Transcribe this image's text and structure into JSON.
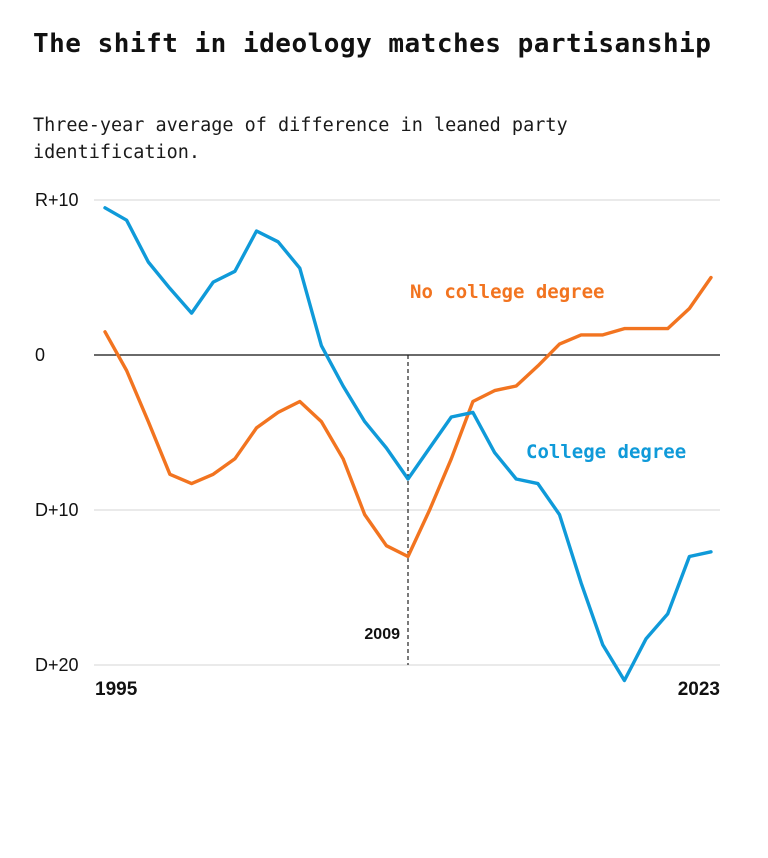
{
  "chart_data": {
    "type": "line",
    "title": "The shift in ideology matches partisanship",
    "subtitle": "Three-year average of difference in leaned party identification.",
    "xlabel": "",
    "ylabel": "",
    "x": [
      1995,
      1996,
      1997,
      1998,
      1999,
      2000,
      2001,
      2002,
      2003,
      2004,
      2005,
      2006,
      2007,
      2008,
      2009,
      2010,
      2011,
      2012,
      2013,
      2014,
      2015,
      2016,
      2017,
      2018,
      2019,
      2020,
      2021,
      2022,
      2023
    ],
    "x_tick_labels": [
      "1995",
      "2023"
    ],
    "ylim": [
      -20,
      10
    ],
    "y_ticks": [
      {
        "value": 10,
        "label": "R+10"
      },
      {
        "value": 0,
        "label": "0"
      },
      {
        "value": -10,
        "label": "D+10"
      },
      {
        "value": -20,
        "label": "D+20"
      }
    ],
    "grid": true,
    "series": [
      {
        "name": "College degree",
        "color": "#0f9ad9",
        "values": [
          9.5,
          8.7,
          6.0,
          4.3,
          2.7,
          4.7,
          5.4,
          8.0,
          7.3,
          5.6,
          0.6,
          -2.0,
          -4.3,
          -6.0,
          -8.0,
          -6.0,
          -4.0,
          -3.7,
          -6.3,
          -8.0,
          -8.3,
          -10.3,
          -14.7,
          -18.7,
          -21.0,
          -18.3,
          -16.7,
          -13.0,
          -12.7
        ]
      },
      {
        "name": "No college degree",
        "color": "#f27420",
        "values": [
          1.5,
          -1.0,
          -4.3,
          -7.7,
          -8.3,
          -7.7,
          -6.7,
          -4.7,
          -3.7,
          -3.0,
          -4.3,
          -6.7,
          -10.3,
          -12.3,
          -13.0,
          -10.0,
          -6.7,
          -3.0,
          -2.3,
          -2.0,
          -0.7,
          0.7,
          1.3,
          1.3,
          1.7,
          1.7,
          1.7,
          3.0,
          5.0
        ]
      }
    ],
    "annotations": [
      {
        "x": 2009,
        "label": "2009",
        "style": "dashed-vertical"
      }
    ]
  }
}
